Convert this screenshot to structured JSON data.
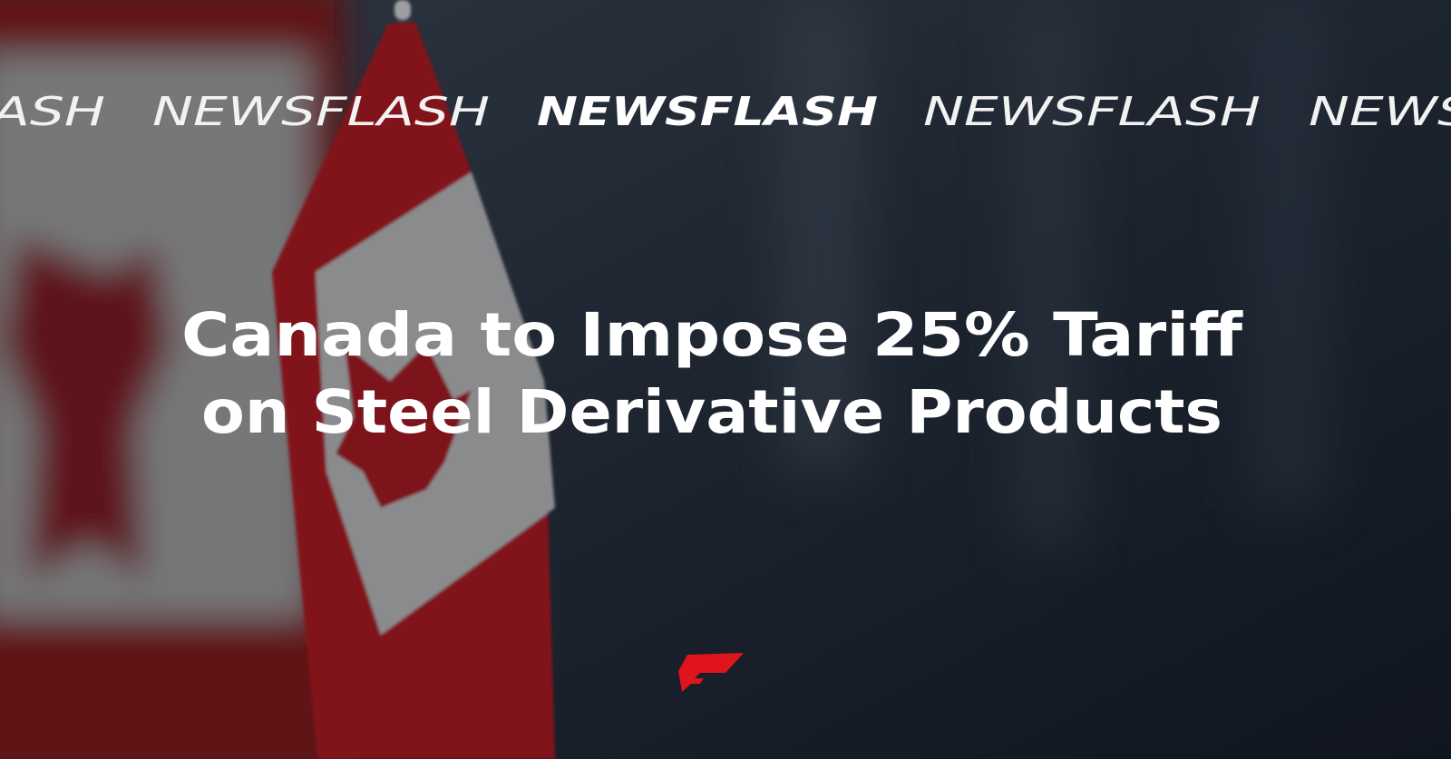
{
  "ticker": [
    "NEWSFLASH",
    "NEWSFLASH",
    "NEWSFLASH",
    "NEWSFLASH",
    "NEWSFLASH"
  ],
  "headline": [
    "Canada to Impose 25% Tariff",
    "on Steel Derivative Products"
  ]
}
